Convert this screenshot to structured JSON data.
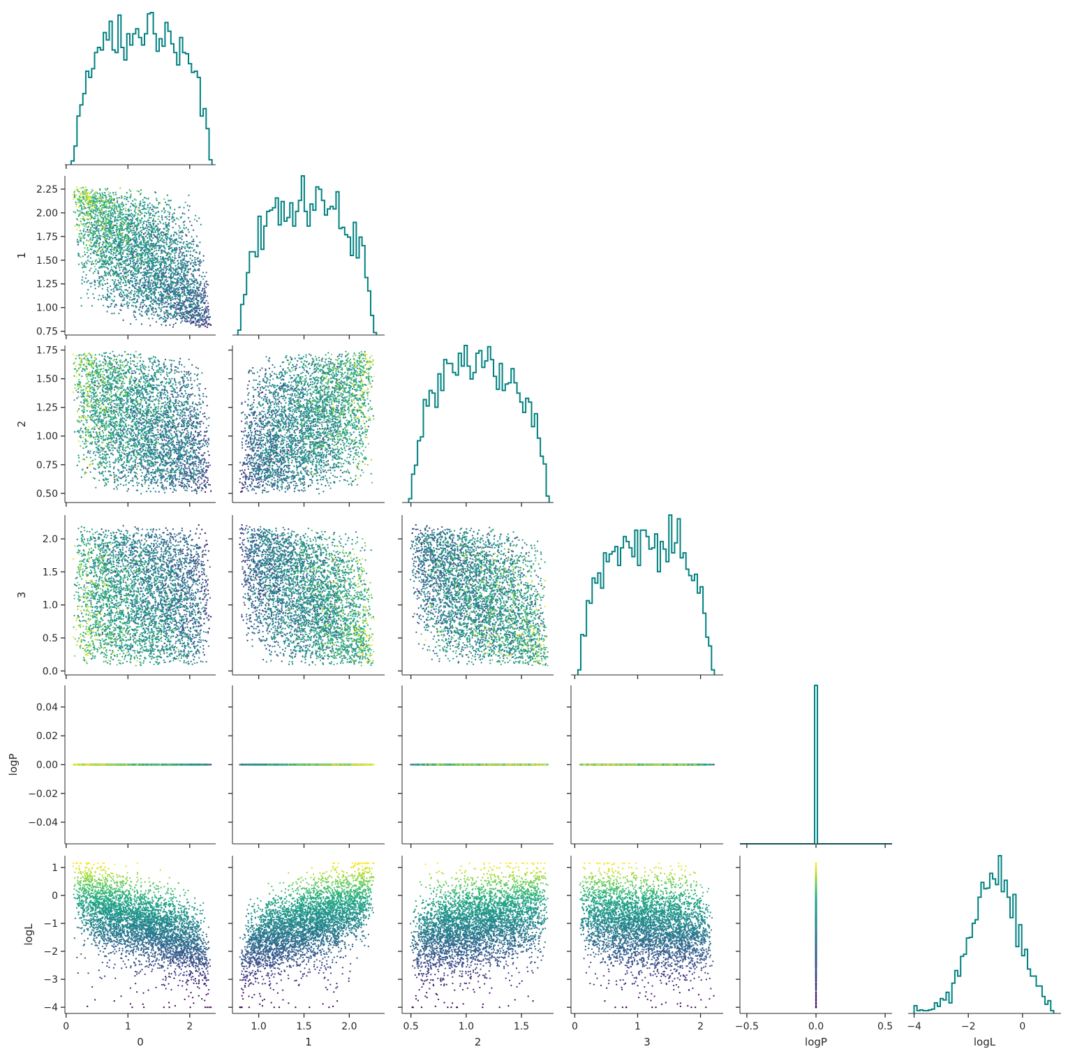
{
  "chart_data": {
    "type": "scatter",
    "subtype": "corner-plot",
    "variables": [
      "0",
      "1",
      "2",
      "3",
      "logP",
      "logL"
    ],
    "hist_color": "#008080",
    "colormap": "viridis",
    "color_by": "logL",
    "point_count_approx": 4000,
    "grid": false,
    "axes": {
      "0": {
        "label": "0",
        "lim": [
          -0.02,
          2.42
        ],
        "ticks": [
          0,
          1,
          2
        ],
        "tick_labels": [
          "0",
          "1",
          "2"
        ]
      },
      "1": {
        "label": "1",
        "lim": [
          0.71,
          2.39
        ],
        "ticks": [
          0.75,
          1.0,
          1.25,
          1.5,
          1.75,
          2.0,
          2.25
        ],
        "tick_labels": [
          "0.75",
          "1.00",
          "1.25",
          "1.50",
          "1.75",
          "2.00",
          "2.25"
        ],
        "xticks": [
          1.0,
          1.5,
          2.0
        ],
        "xtick_labels": [
          "1.0",
          "1.5",
          "2.0"
        ]
      },
      "2": {
        "label": "2",
        "lim": [
          0.42,
          1.79
        ],
        "ticks": [
          0.5,
          0.75,
          1.0,
          1.25,
          1.5,
          1.75
        ],
        "tick_labels": [
          "0.50",
          "0.75",
          "1.00",
          "1.25",
          "1.50",
          "1.75"
        ],
        "xticks": [
          0.5,
          1.0,
          1.5
        ],
        "xtick_labels": [
          "0.5",
          "1.0",
          "1.5"
        ]
      },
      "3": {
        "label": "3",
        "lim": [
          -0.06,
          2.36
        ],
        "ticks": [
          0.0,
          0.5,
          1.0,
          1.5,
          2.0
        ],
        "tick_labels": [
          "0.0",
          "0.5",
          "1.0",
          "1.5",
          "2.0"
        ],
        "xticks": [
          0,
          1,
          2
        ],
        "xtick_labels": [
          "0",
          "1",
          "2"
        ]
      },
      "logP": {
        "label": "logP",
        "lim": [
          -0.055,
          0.055
        ],
        "ticks": [
          -0.04,
          -0.02,
          0.0,
          0.02,
          0.04
        ],
        "tick_labels": [
          "−0.04",
          "−0.02",
          "0.00",
          "0.02",
          "0.04"
        ],
        "xlim": [
          -0.55,
          0.55
        ],
        "xticks": [
          -0.5,
          0.0,
          0.5
        ],
        "xtick_labels": [
          "−0.5",
          "0.0",
          "0.5"
        ]
      },
      "logL": {
        "label": "logL",
        "lim": [
          -4.22,
          1.42
        ],
        "ticks": [
          -4,
          -3,
          -2,
          -1,
          0,
          1
        ],
        "tick_labels": [
          "−4",
          "−3",
          "−2",
          "−1",
          "0",
          "1"
        ],
        "xticks": [
          -4,
          -2,
          0
        ],
        "xtick_labels": [
          "−4",
          "−2",
          "0"
        ]
      }
    },
    "marginals": {
      "0": {
        "bins": [
          0.08,
          2.36
        ],
        "peak_at": 1.1
      },
      "1": {
        "bins": [
          0.77,
          2.3
        ],
        "peak_at": 1.5
      },
      "2": {
        "bins": [
          0.48,
          1.75
        ],
        "peak_at": 1.05
      },
      "3": {
        "bins": [
          0.05,
          2.22
        ],
        "peak_at": 1.1
      },
      "logP": {
        "spike_at": 0.0
      },
      "logL": {
        "bins": [
          -4.0,
          1.15
        ],
        "peak_at": -1.0
      }
    },
    "correlations": {
      "0-1": -0.55,
      "0-2": -0.35,
      "0-3": -0.05,
      "1-2": 0.15,
      "1-3": -0.5,
      "2-3": -0.35,
      "0-logL": -0.35,
      "1-logL": 0.25,
      "2-logL": 0.05,
      "3-logL": -0.1
    }
  }
}
